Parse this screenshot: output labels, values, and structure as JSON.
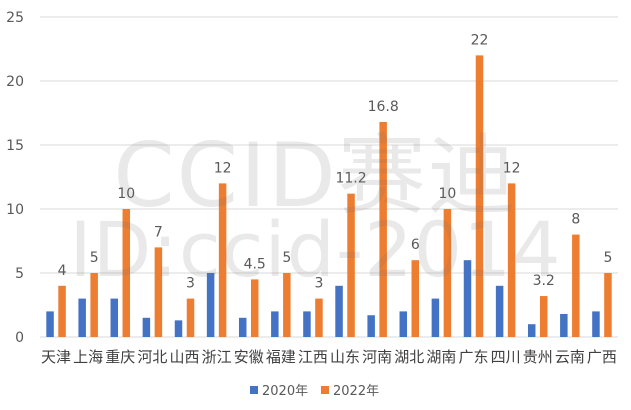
{
  "chart_data": {
    "type": "bar",
    "categories": [
      "天津",
      "上海",
      "重庆",
      "河北",
      "山西",
      "浙江",
      "安徽",
      "福建",
      "江西",
      "山东",
      "河南",
      "湖北",
      "湖南",
      "广东",
      "四川",
      "贵州",
      "云南",
      "广西"
    ],
    "series": [
      {
        "name": "2020年",
        "color": "#4472C4",
        "values": [
          2.0,
          3.0,
          3.0,
          1.5,
          1.3,
          5.0,
          1.5,
          2.0,
          2.0,
          4.0,
          1.7,
          2.0,
          3.0,
          6.0,
          4.0,
          1.0,
          1.8,
          2.0
        ]
      },
      {
        "name": "2022年",
        "color": "#ED7D31",
        "values": [
          4,
          5,
          10,
          7,
          3,
          12,
          4.5,
          5,
          3,
          11.2,
          16.8,
          6,
          10,
          22,
          12,
          3.2,
          8,
          5
        ],
        "labels": [
          "4",
          "5",
          "10",
          "7",
          "3",
          "12",
          "4.5",
          "5",
          "3",
          "11.2",
          "16.8",
          "6",
          "10",
          "22",
          "12",
          "3.2",
          "8",
          "5"
        ]
      }
    ],
    "ylim": [
      0,
      25
    ],
    "yticks": [
      0,
      5,
      10,
      15,
      20,
      25
    ],
    "grid": true,
    "legend": "bottom",
    "title": "",
    "xlabel": "",
    "ylabel": ""
  },
  "watermark": {
    "line1": "CCID赛迪",
    "line2": "ID:ccid-2014"
  },
  "colors": {
    "grid": "#D9D9D9",
    "axis": "#D9D9D9",
    "text": "#595959"
  }
}
